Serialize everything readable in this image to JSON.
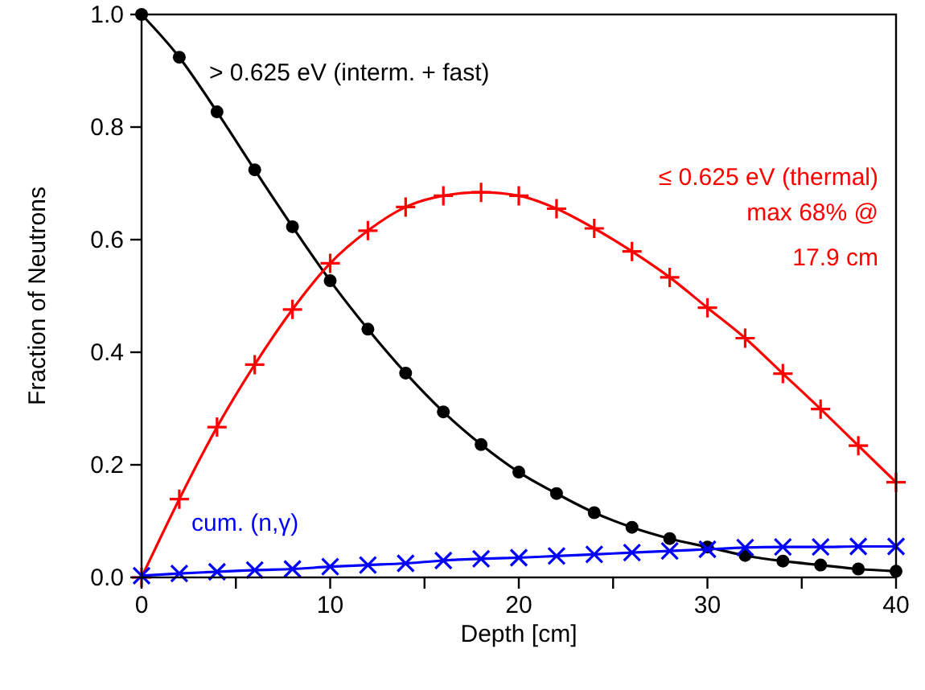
{
  "chart_data": {
    "type": "line",
    "xlabel": "Depth [cm]",
    "ylabel": "Fraction of Neutrons",
    "x": [
      0,
      2,
      4,
      6,
      8,
      10,
      12,
      14,
      16,
      18,
      20,
      22,
      24,
      26,
      28,
      30,
      32,
      34,
      36,
      38,
      40
    ],
    "series": [
      {
        "name": "> 0.625 eV (interm. + fast)",
        "color": "#000000",
        "marker": "circle",
        "values": [
          1.0,
          0.924,
          0.827,
          0.724,
          0.623,
          0.527,
          0.441,
          0.363,
          0.294,
          0.236,
          0.187,
          0.149,
          0.115,
          0.089,
          0.069,
          0.054,
          0.039,
          0.029,
          0.022,
          0.015,
          0.011
        ]
      },
      {
        "name": "≤ 0.625 eV (thermal)",
        "color": "#ff0000",
        "marker": "plus",
        "values": [
          0.0,
          0.139,
          0.267,
          0.378,
          0.476,
          0.558,
          0.616,
          0.658,
          0.678,
          0.684,
          0.678,
          0.655,
          0.62,
          0.579,
          0.533,
          0.479,
          0.425,
          0.362,
          0.299,
          0.234,
          0.169
        ]
      },
      {
        "name": "cum. (n,γ)",
        "color": "#0000ff",
        "marker": "cross",
        "values": [
          0.003,
          0.007,
          0.01,
          0.013,
          0.015,
          0.019,
          0.022,
          0.025,
          0.03,
          0.033,
          0.035,
          0.038,
          0.041,
          0.044,
          0.047,
          0.05,
          0.053,
          0.054,
          0.054,
          0.055,
          0.055
        ]
      }
    ],
    "annotations": [
      "max 68% @\n17.9 cm"
    ],
    "xlim": [
      0,
      40
    ],
    "ylim": [
      0,
      1.0
    ],
    "xticks": [
      0,
      {
        "value": 5,
        "label": null
      },
      10,
      {
        "value": 15,
        "label": null
      },
      20,
      {
        "value": 25,
        "label": null
      },
      30,
      {
        "value": 35,
        "label": null
      },
      40
    ],
    "yticks": [
      {
        "value": 0,
        "label": "0.0"
      },
      0.2,
      0.4,
      0.6,
      0.8,
      {
        "value": 1,
        "label": "1.0"
      }
    ],
    "grid": false,
    "line_style": "solid"
  }
}
